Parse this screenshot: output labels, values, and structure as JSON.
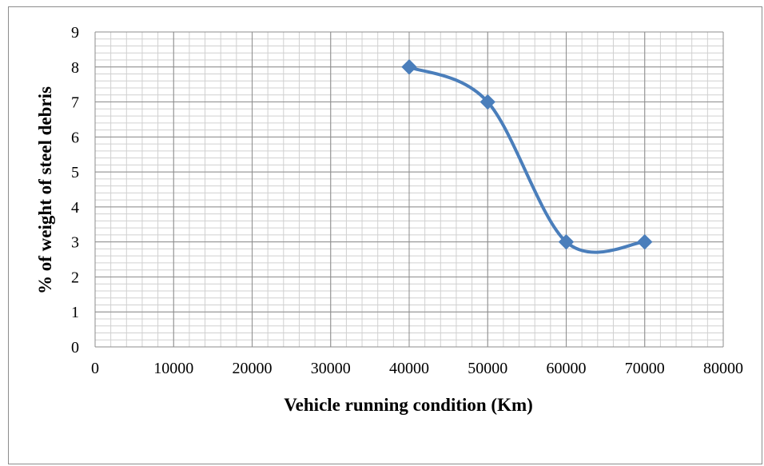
{
  "chart_data": {
    "type": "line",
    "title": "",
    "xlabel": "Vehicle running condition (Km)",
    "ylabel": "% of weight of steel debris",
    "xlim": [
      0,
      80000
    ],
    "ylim": [
      0,
      9
    ],
    "x_ticks": [
      0,
      10000,
      20000,
      30000,
      40000,
      50000,
      60000,
      70000,
      80000
    ],
    "y_ticks": [
      0,
      1,
      2,
      3,
      4,
      5,
      6,
      7,
      8,
      9
    ],
    "x_tick_labels": [
      "0",
      "10000",
      "20000",
      "30000",
      "40000",
      "50000",
      "60000",
      "70000",
      "80000"
    ],
    "y_tick_labels": [
      "0",
      "1",
      "2",
      "3",
      "4",
      "5",
      "6",
      "7",
      "8",
      "9"
    ],
    "grid": true,
    "smooth": true,
    "series": [
      {
        "marker": "diamond",
        "color": "#4a7ebb",
        "x": [
          40000,
          50000,
          60000,
          70000
        ],
        "y": [
          8,
          7,
          3,
          3
        ]
      }
    ]
  }
}
